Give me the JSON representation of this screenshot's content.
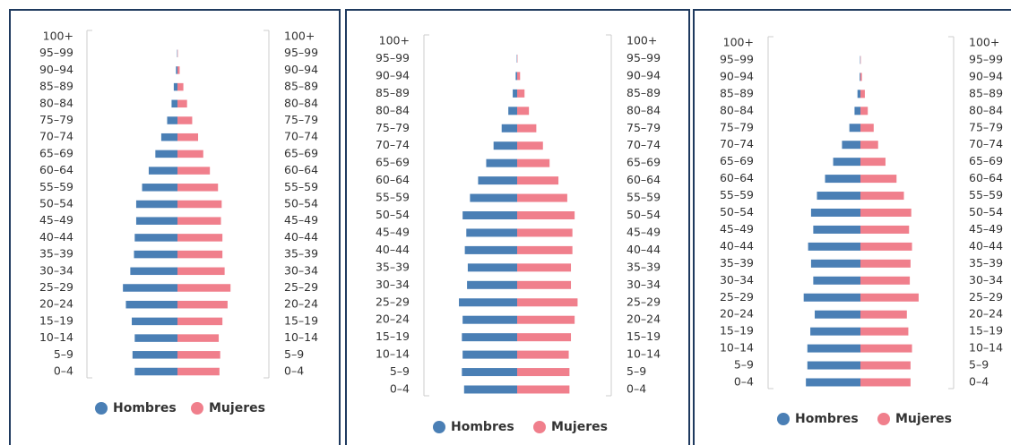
{
  "chart_data": [
    {
      "type": "pyramid",
      "categories": [
        "100+",
        "95–99",
        "90–94",
        "85–89",
        "80–84",
        "75–79",
        "70–74",
        "65–69",
        "60–64",
        "55–59",
        "50–54",
        "45–49",
        "40–44",
        "35–39",
        "30–34",
        "25–29",
        "20–24",
        "15–19",
        "10–14",
        "5–9",
        "0–4"
      ],
      "series": [
        {
          "name": "Hombres",
          "color": "#4a7fb5",
          "values": [
            0,
            0.5,
            2,
            5,
            8,
            14,
            22,
            30,
            39,
            48,
            56,
            56,
            58,
            59,
            64,
            74,
            70,
            62,
            58,
            61,
            58
          ]
        },
        {
          "name": "Mujeres",
          "color": "#f07f8c",
          "values": [
            0,
            0.5,
            3,
            8,
            13,
            20,
            28,
            35,
            44,
            55,
            60,
            59,
            61,
            61,
            64,
            72,
            68,
            61,
            56,
            58,
            57
          ]
        }
      ],
      "xlim": [
        0,
        90
      ]
    },
    {
      "type": "pyramid",
      "categories": [
        "100+",
        "95–99",
        "90–94",
        "85–89",
        "80–84",
        "75–79",
        "70–74",
        "65–69",
        "60–64",
        "55–59",
        "50–54",
        "45–49",
        "40–44",
        "35–39",
        "30–34",
        "25–29",
        "20–24",
        "15–19",
        "10–14",
        "5–9",
        "0–4"
      ],
      "series": [
        {
          "name": "Hombres",
          "color": "#4a7fb5",
          "values": [
            0,
            0.5,
            2,
            6,
            12,
            21,
            32,
            42,
            53,
            64,
            74,
            69,
            71,
            67,
            68,
            79,
            74,
            75,
            74,
            75,
            72
          ]
        },
        {
          "name": "Mujeres",
          "color": "#f07f8c",
          "values": [
            0,
            0.5,
            4,
            10,
            16,
            26,
            35,
            44,
            56,
            68,
            78,
            75,
            75,
            73,
            73,
            82,
            78,
            73,
            70,
            71,
            71
          ]
        }
      ],
      "xlim": [
        0,
        90
      ]
    },
    {
      "type": "pyramid",
      "categories": [
        "100+",
        "95–99",
        "90–94",
        "85–89",
        "80–84",
        "75–79",
        "70–74",
        "65–69",
        "60–64",
        "55–59",
        "50–54",
        "45–49",
        "40–44",
        "35–39",
        "30–34",
        "25–29",
        "20–24",
        "15–19",
        "10–14",
        "5–9",
        "0–4"
      ],
      "series": [
        {
          "name": "Hombres",
          "color": "#4a7fb5",
          "values": [
            0,
            0.5,
            1,
            4,
            8,
            15,
            25,
            37,
            48,
            59,
            67,
            64,
            71,
            67,
            64,
            77,
            62,
            68,
            72,
            72,
            74
          ]
        },
        {
          "name": "Mujeres",
          "color": "#f07f8c",
          "values": [
            0,
            0.5,
            2,
            6,
            10,
            18,
            24,
            34,
            49,
            59,
            69,
            66,
            70,
            68,
            67,
            79,
            63,
            65,
            70,
            68,
            68
          ]
        }
      ],
      "xlim": [
        0,
        90
      ]
    }
  ]
}
